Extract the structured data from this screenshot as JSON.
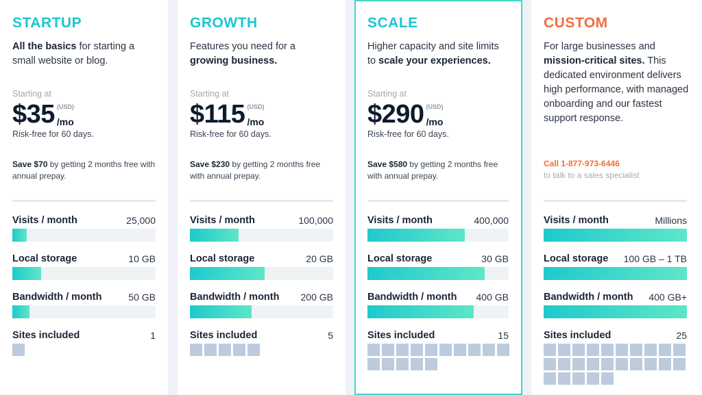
{
  "plans": [
    {
      "name": "STARTUP",
      "name_color": "#1cc6cf",
      "desc_html_parts": [
        {
          "b": "All the basics"
        },
        {
          "t": " for starting a small website or blog."
        }
      ],
      "starting": "Starting at",
      "price": "$35",
      "usd": "(USD)",
      "per": "/mo",
      "riskfree": "Risk-free for 60 days.",
      "save_bold": "Save $70",
      "save_rest": " by getting 2 months free with annual prepay.",
      "metrics": [
        {
          "label": "Visits / month",
          "value": "25,000",
          "fill": 0.1
        },
        {
          "label": "Local storage",
          "value": "10 GB",
          "fill": 0.2
        },
        {
          "label": "Bandwidth / month",
          "value": "50 GB",
          "fill": 0.12
        }
      ],
      "sites_label": "Sites included",
      "sites_value": "1",
      "sites_count": 1
    },
    {
      "name": "GROWTH",
      "name_color": "#1cc6cf",
      "desc_html_parts": [
        {
          "t": "Features you need for a "
        },
        {
          "b": "growing business."
        }
      ],
      "starting": "Starting at",
      "price": "$115",
      "usd": "(USD)",
      "per": "/mo",
      "riskfree": "Risk-free for 60 days.",
      "save_bold": "Save $230",
      "save_rest": " by getting 2 months free with annual prepay.",
      "metrics": [
        {
          "label": "Visits / month",
          "value": "100,000",
          "fill": 0.34
        },
        {
          "label": "Local storage",
          "value": "20 GB",
          "fill": 0.52
        },
        {
          "label": "Bandwidth / month",
          "value": "200 GB",
          "fill": 0.43
        }
      ],
      "sites_label": "Sites included",
      "sites_value": "5",
      "sites_count": 5
    },
    {
      "name": "SCALE",
      "name_color": "#1cc6cf",
      "desc_html_parts": [
        {
          "t": "Higher capacity and site limits to "
        },
        {
          "b": "scale your experiences."
        }
      ],
      "starting": "Starting at",
      "price": "$290",
      "usd": "(USD)",
      "per": "/mo",
      "riskfree": "Risk-free for 60 days.",
      "save_bold": "Save $580",
      "save_rest": " by getting 2 months free with annual prepay.",
      "metrics": [
        {
          "label": "Visits / month",
          "value": "400,000",
          "fill": 0.69
        },
        {
          "label": "Local storage",
          "value": "30 GB",
          "fill": 0.83
        },
        {
          "label": "Bandwidth / month",
          "value": "400 GB",
          "fill": 0.75
        }
      ],
      "sites_label": "Sites included",
      "sites_value": "15",
      "sites_count": 15
    },
    {
      "name": "CUSTOM",
      "name_color": "#f26d3d",
      "desc_html_parts": [
        {
          "t": "For large businesses and "
        },
        {
          "b": "mission-critical sites."
        },
        {
          "t": " This dedicated environment delivers high performance, with managed onboarding and our fastest support response."
        }
      ],
      "call": "Call 1-877-973-6446",
      "talk": "to talk to a sales specialist",
      "metrics": [
        {
          "label": "Visits / month",
          "value": "Millions",
          "fill": 1.0
        },
        {
          "label": "Local storage",
          "value": "100 GB – 1 TB",
          "fill": 1.0
        },
        {
          "label": "Bandwidth / month",
          "value": "400 GB+",
          "fill": 1.0
        }
      ],
      "sites_label": "Sites included",
      "sites_value": "25",
      "sites_count": 25
    }
  ]
}
